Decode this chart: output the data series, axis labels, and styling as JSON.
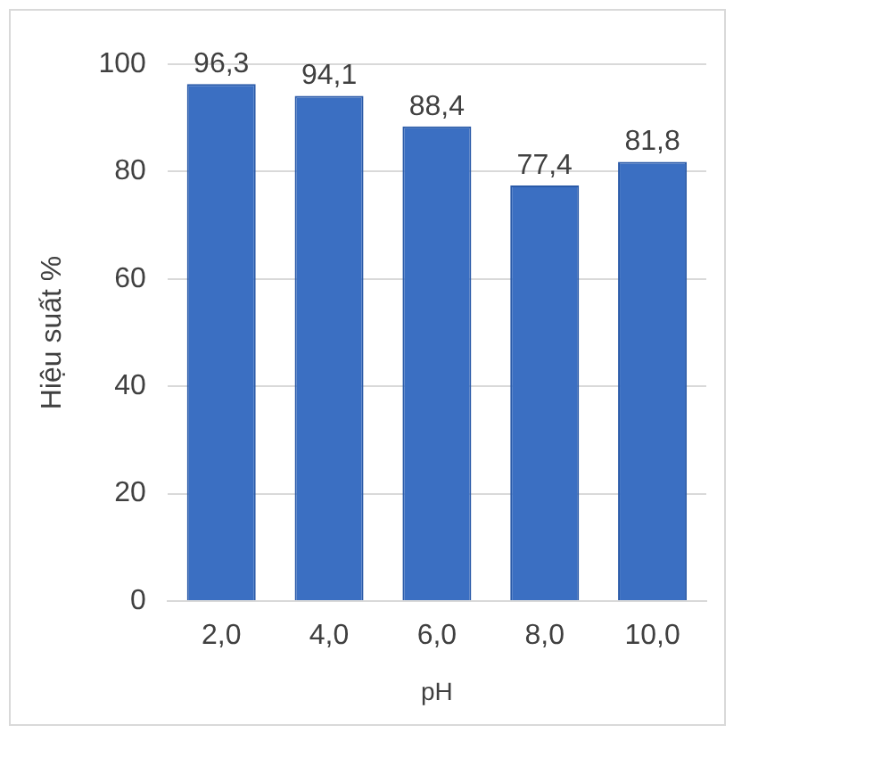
{
  "chart_data": {
    "type": "bar",
    "xlabel": "pH",
    "ylabel": "Hiệu suất %",
    "categories": [
      "2,0",
      "4,0",
      "6,0",
      "8,0",
      "10,0"
    ],
    "values": [
      96.3,
      94.1,
      88.4,
      77.4,
      81.8
    ],
    "value_labels": [
      "96,3",
      "94,1",
      "88,4",
      "77,4",
      "81,8"
    ],
    "color": "#3b6fc2",
    "ylim": [
      0,
      100
    ],
    "yticks": [
      0,
      20,
      40,
      60,
      80,
      100
    ],
    "grid": "y",
    "legend": false
  }
}
